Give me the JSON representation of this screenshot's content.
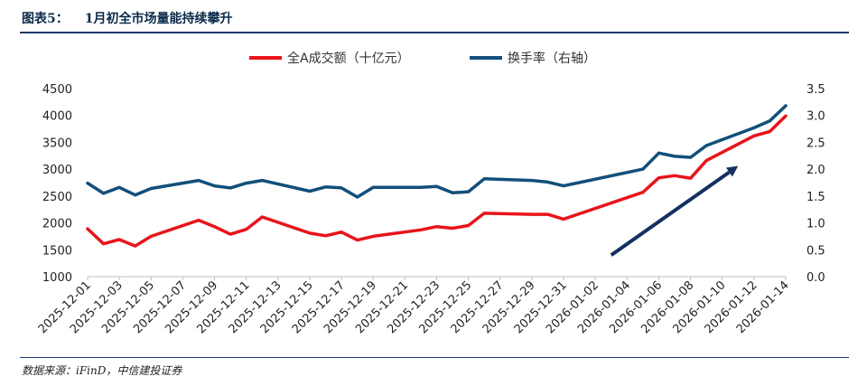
{
  "header": {
    "figure_label": "图表5：",
    "title": "1月初全市场量能持续攀升"
  },
  "footer": {
    "source": "数据来源：iFinD，中信建投证券"
  },
  "colors": {
    "series_a": "#e8141b",
    "series_b": "#124f7a",
    "arrow": "#14305e",
    "rule": "#1a3a6a"
  },
  "chart_data": {
    "type": "line",
    "title": "",
    "legend_position": "top",
    "grid": false,
    "x_start": "2025-12-01",
    "x_end": "2026-01-14",
    "x_tick_labels": [
      "2025-12-01",
      "2025-12-03",
      "2025-12-05",
      "2025-12-07",
      "2025-12-09",
      "2025-12-11",
      "2025-12-13",
      "2025-12-15",
      "2025-12-17",
      "2025-12-19",
      "2025-12-21",
      "2025-12-23",
      "2025-12-25",
      "2025-12-27",
      "2025-12-29",
      "2025-12-31",
      "2026-01-02",
      "2026-01-04",
      "2026-01-06",
      "2026-01-08",
      "2026-01-10",
      "2026-01-12",
      "2026-01-14"
    ],
    "y_left": {
      "range": [
        1000,
        4500
      ],
      "ticks": [
        "1000",
        "1500",
        "2000",
        "2500",
        "3000",
        "3500",
        "4000",
        "4500"
      ]
    },
    "y_right": {
      "range": [
        0,
        3.5
      ],
      "ticks": [
        "0.0",
        "0.5",
        "1.0",
        "1.5",
        "2.0",
        "2.5",
        "3.0",
        "3.5"
      ]
    },
    "series": [
      {
        "name": "全A成交额（十亿元）",
        "axis": "left",
        "points": [
          [
            "2025-12-01",
            1890
          ],
          [
            "2025-12-02",
            1610
          ],
          [
            "2025-12-03",
            1690
          ],
          [
            "2025-12-04",
            1570
          ],
          [
            "2025-12-05",
            1750
          ],
          [
            "2025-12-08",
            2050
          ],
          [
            "2025-12-09",
            1930
          ],
          [
            "2025-12-10",
            1790
          ],
          [
            "2025-12-11",
            1880
          ],
          [
            "2025-12-12",
            2110
          ],
          [
            "2025-12-15",
            1810
          ],
          [
            "2025-12-16",
            1760
          ],
          [
            "2025-12-17",
            1830
          ],
          [
            "2025-12-18",
            1680
          ],
          [
            "2025-12-19",
            1750
          ],
          [
            "2025-12-22",
            1870
          ],
          [
            "2025-12-23",
            1930
          ],
          [
            "2025-12-24",
            1900
          ],
          [
            "2025-12-25",
            1950
          ],
          [
            "2025-12-26",
            2180
          ],
          [
            "2025-12-29",
            2160
          ],
          [
            "2025-12-30",
            2160
          ],
          [
            "2025-12-31",
            2070
          ],
          [
            "2026-01-05",
            2570
          ],
          [
            "2026-01-06",
            2840
          ],
          [
            "2026-01-07",
            2880
          ],
          [
            "2026-01-08",
            2830
          ],
          [
            "2026-01-09",
            3160
          ],
          [
            "2026-01-12",
            3620
          ],
          [
            "2026-01-13",
            3700
          ],
          [
            "2026-01-14",
            3990
          ]
        ]
      },
      {
        "name": "换手率（右轴）",
        "axis": "right",
        "points": [
          [
            "2025-12-01",
            1.74
          ],
          [
            "2025-12-02",
            1.55
          ],
          [
            "2025-12-03",
            1.66
          ],
          [
            "2025-12-04",
            1.52
          ],
          [
            "2025-12-05",
            1.64
          ],
          [
            "2025-12-08",
            1.79
          ],
          [
            "2025-12-09",
            1.69
          ],
          [
            "2025-12-10",
            1.65
          ],
          [
            "2025-12-11",
            1.74
          ],
          [
            "2025-12-12",
            1.79
          ],
          [
            "2025-12-15",
            1.59
          ],
          [
            "2025-12-16",
            1.67
          ],
          [
            "2025-12-17",
            1.65
          ],
          [
            "2025-12-18",
            1.48
          ],
          [
            "2025-12-19",
            1.66
          ],
          [
            "2025-12-22",
            1.66
          ],
          [
            "2025-12-23",
            1.68
          ],
          [
            "2025-12-24",
            1.56
          ],
          [
            "2025-12-25",
            1.58
          ],
          [
            "2025-12-26",
            1.82
          ],
          [
            "2025-12-29",
            1.79
          ],
          [
            "2025-12-30",
            1.76
          ],
          [
            "2025-12-31",
            1.69
          ],
          [
            "2026-01-05",
            2.0
          ],
          [
            "2026-01-06",
            2.3
          ],
          [
            "2026-01-07",
            2.24
          ],
          [
            "2026-01-08",
            2.22
          ],
          [
            "2026-01-09",
            2.44
          ],
          [
            "2026-01-12",
            2.77
          ],
          [
            "2026-01-13",
            2.9
          ],
          [
            "2026-01-14",
            3.18
          ]
        ]
      }
    ],
    "annotations": [
      {
        "type": "arrow",
        "from": [
          "2026-01-03",
          1400
        ],
        "to": [
          "2026-01-11",
          3060
        ]
      }
    ]
  }
}
